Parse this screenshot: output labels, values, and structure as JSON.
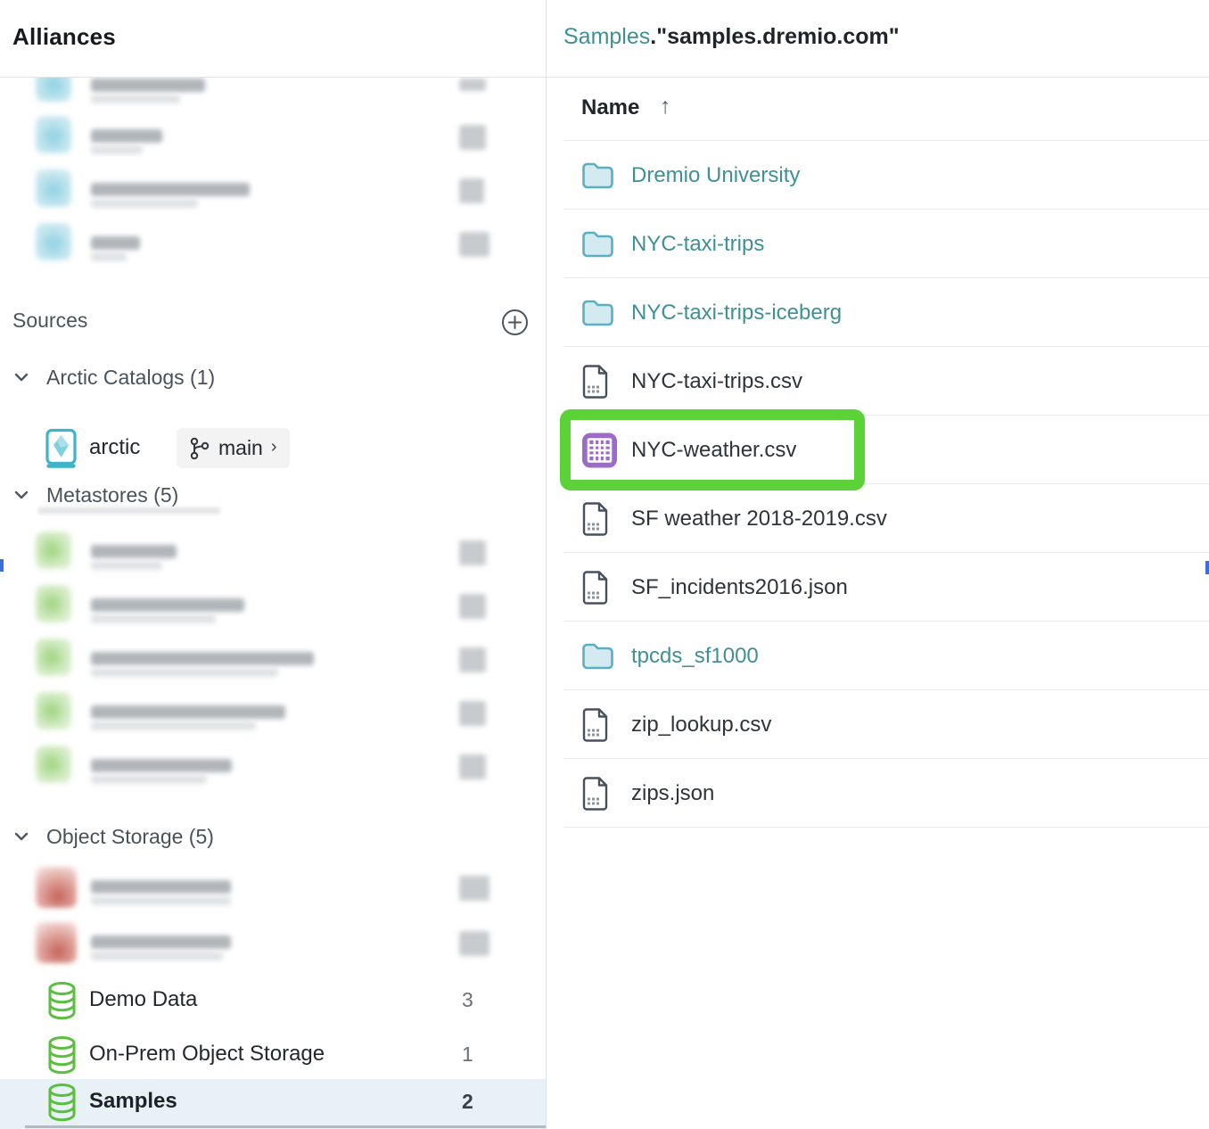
{
  "colors": {
    "teal_link": "#3f9096",
    "annotation_green": "#5bd338",
    "table_icon_purple": "#9c6bc7",
    "folder_teal": "#58b0c2",
    "database_green": "#5abf3f",
    "selected_row_bg": "#e8f2f6"
  },
  "sidebar": {
    "title": "Alliances",
    "sources_label": "Sources",
    "add_source_icon": "plus-circle-icon",
    "sections": {
      "arctic_catalogs": {
        "label": "Arctic Catalogs (1)"
      },
      "metastores": {
        "label": "Metastores (5)"
      },
      "object_storage": {
        "label": "Object Storage (5)"
      }
    },
    "arctic_item": {
      "name": "arctic",
      "branch": "main",
      "branch_icon": "git-branch-icon",
      "caret": "›"
    },
    "redacted_spaces": [
      {
        "primary_w": 128,
        "secondary_w": 100,
        "right_w": 30,
        "clipped": true
      },
      {
        "primary_w": 80,
        "secondary_w": 58,
        "right_w": 30,
        "clipped": false
      },
      {
        "primary_w": 178,
        "secondary_w": 120,
        "right_w": 28,
        "clipped": false
      },
      {
        "primary_w": 55,
        "secondary_w": 40,
        "right_w": 34,
        "clipped": false
      }
    ],
    "redacted_metastores": [
      {
        "primary_w": 96,
        "secondary_w": 80,
        "right_w": 30
      },
      {
        "primary_w": 172,
        "secondary_w": 140,
        "right_w": 30
      },
      {
        "primary_w": 250,
        "secondary_w": 210,
        "right_w": 30
      },
      {
        "primary_w": 218,
        "secondary_w": 185,
        "right_w": 30
      },
      {
        "primary_w": 158,
        "secondary_w": 130,
        "right_w": 30
      }
    ],
    "redacted_object_stores": [
      {
        "primary_w": 157,
        "secondary_w": 157,
        "right_w": 34
      },
      {
        "primary_w": 157,
        "secondary_w": 148,
        "right_w": 34
      }
    ],
    "object_storage_items": [
      {
        "name": "Demo Data",
        "count": "3",
        "selected": false
      },
      {
        "name": "On-Prem Object Storage",
        "count": "1",
        "selected": false
      },
      {
        "name": "Samples",
        "count": "2",
        "selected": true
      }
    ]
  },
  "main": {
    "breadcrumb": {
      "source": "Samples",
      "path_rest": ".\"samples.dremio.com\""
    },
    "table": {
      "name_header": "Name",
      "sort_direction": "ascending",
      "sort_arrow": "↑"
    },
    "rows": [
      {
        "type": "folder",
        "name": "Dremio University"
      },
      {
        "type": "folder",
        "name": "NYC-taxi-trips"
      },
      {
        "type": "folder",
        "name": "NYC-taxi-trips-iceberg"
      },
      {
        "type": "file",
        "name": "NYC-taxi-trips.csv"
      },
      {
        "type": "table",
        "name": "NYC-weather.csv",
        "highlighted": true
      },
      {
        "type": "file",
        "name": "SF weather 2018-2019.csv"
      },
      {
        "type": "file",
        "name": "SF_incidents2016.json"
      },
      {
        "type": "folder",
        "name": "tpcds_sf1000"
      },
      {
        "type": "file",
        "name": "zip_lookup.csv"
      },
      {
        "type": "file",
        "name": "zips.json"
      }
    ],
    "highlighted_row": "NYC-weather.csv"
  }
}
